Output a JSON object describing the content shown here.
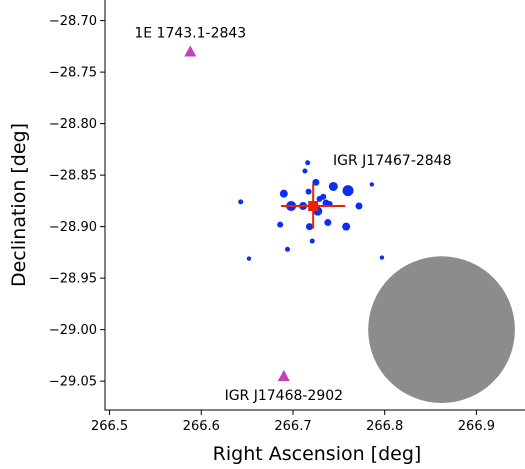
{
  "chart_data": {
    "type": "scatter",
    "xlabel": "Right Ascension [deg]",
    "ylabel": "Declination [deg]",
    "xlim": [
      266.495,
      266.953
    ],
    "ylim": [
      -29.078,
      -28.68
    ],
    "xticks": [
      "266.5",
      "266.6",
      "266.7",
      "266.8",
      "266.9"
    ],
    "xtick_values": [
      266.5,
      266.6,
      266.7,
      266.8,
      266.9
    ],
    "yticks": [
      "−28.70",
      "−28.75",
      "−28.80",
      "−28.85",
      "−28.90",
      "−28.95",
      "−29.00",
      "−29.05"
    ],
    "ytick_values": [
      -28.7,
      -28.75,
      -28.8,
      -28.85,
      -28.9,
      -28.95,
      -29.0,
      -29.05
    ],
    "grid": false,
    "colors": {
      "events": "#0b2ff0",
      "sources": "#c040c0",
      "position": "#ee2200",
      "psf": "#8c8c8c"
    },
    "events": [
      {
        "x": 266.643,
        "y": -28.876,
        "s": 2.5
      },
      {
        "x": 266.652,
        "y": -28.931,
        "s": 2.2
      },
      {
        "x": 266.686,
        "y": -28.898,
        "s": 3
      },
      {
        "x": 266.69,
        "y": -28.868,
        "s": 4
      },
      {
        "x": 266.694,
        "y": -28.922,
        "s": 2.5
      },
      {
        "x": 266.698,
        "y": -28.88,
        "s": 5
      },
      {
        "x": 266.711,
        "y": -28.88,
        "s": 4
      },
      {
        "x": 266.713,
        "y": -28.846,
        "s": 2.5
      },
      {
        "x": 266.716,
        "y": -28.838,
        "s": 2.5
      },
      {
        "x": 266.717,
        "y": -28.866,
        "s": 3
      },
      {
        "x": 266.718,
        "y": -28.9,
        "s": 3.5
      },
      {
        "x": 266.721,
        "y": -28.914,
        "s": 2.5
      },
      {
        "x": 266.725,
        "y": -28.857,
        "s": 3.5
      },
      {
        "x": 266.727,
        "y": -28.885,
        "s": 4.5
      },
      {
        "x": 266.729,
        "y": -28.873,
        "s": 3
      },
      {
        "x": 266.733,
        "y": -28.871,
        "s": 3
      },
      {
        "x": 266.736,
        "y": -28.877,
        "s": 3.5
      },
      {
        "x": 266.738,
        "y": -28.896,
        "s": 3.5
      },
      {
        "x": 266.74,
        "y": -28.878,
        "s": 3
      },
      {
        "x": 266.744,
        "y": -28.861,
        "s": 4.5
      },
      {
        "x": 266.758,
        "y": -28.9,
        "s": 4
      },
      {
        "x": 266.76,
        "y": -28.865,
        "s": 5.5
      },
      {
        "x": 266.772,
        "y": -28.88,
        "s": 3.5
      },
      {
        "x": 266.786,
        "y": -28.859,
        "s": 2.2
      },
      {
        "x": 266.797,
        "y": -28.93,
        "s": 2.2
      }
    ],
    "position": {
      "x": 266.722,
      "y": -28.88,
      "xerr": 0.035,
      "yerr": 0.022
    },
    "psf_circle": {
      "x": 266.862,
      "y": -29.0,
      "r": 0.08
    },
    "sources": [
      {
        "x": 266.588,
        "y": -28.73,
        "label": "1E 1743.1-2843"
      },
      {
        "x": 266.69,
        "y": -29.045,
        "label": "IGR J17468-2902"
      }
    ],
    "target_label": "IGR J17467-2848"
  }
}
